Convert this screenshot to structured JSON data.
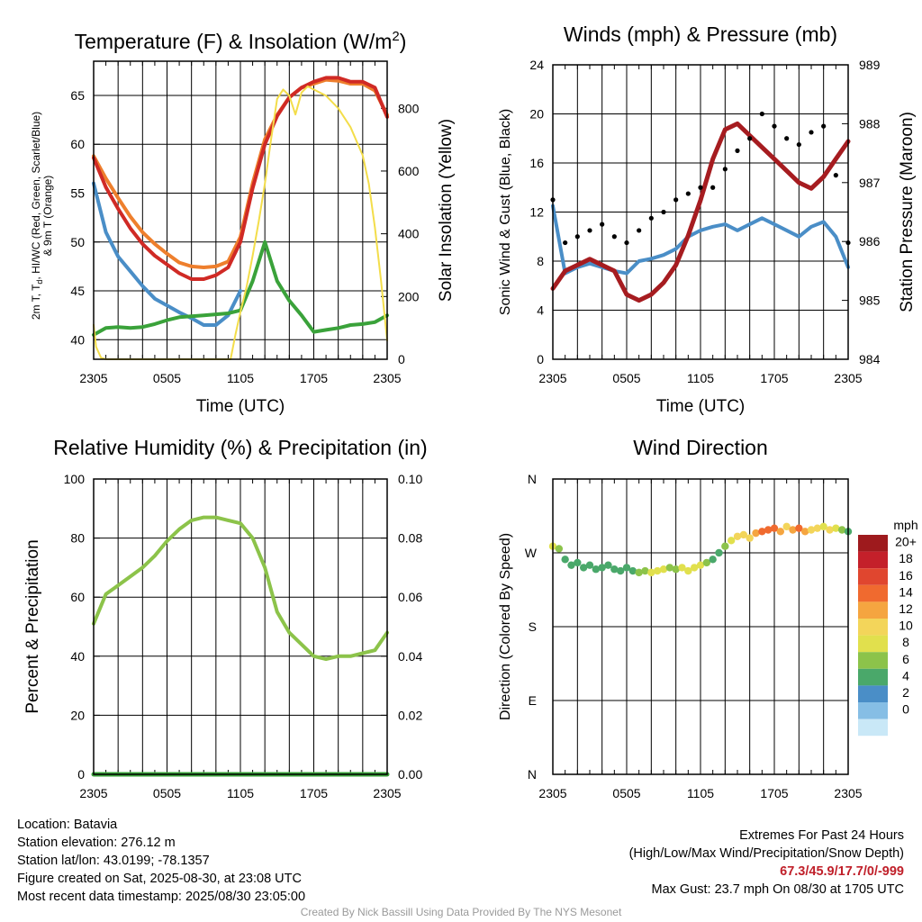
{
  "chart_data": [
    {
      "type": "line",
      "title": "Temperature (F) & Insolation (W/m²)",
      "xlabel": "Time (UTC)",
      "ylabel_lines": [
        "2m T, T",
        "d",
        ", HI/WC (Red, Green, Scarlet/Blue)",
        "& 9m T (Orange)"
      ],
      "ylabel_right": "Solar Insolation (Yellow)",
      "x_ticks": [
        "2305",
        "0505",
        "1105",
        "1705",
        "2305"
      ],
      "x_domain_hours": [
        0,
        24
      ],
      "ylim": [
        38,
        68.5
      ],
      "y_ticks": [
        40,
        45,
        50,
        55,
        60,
        65
      ],
      "ylim_right": [
        0,
        950
      ],
      "y_ticks_right": [
        0,
        200,
        400,
        600,
        800
      ],
      "grid": true,
      "series": [
        {
          "color": "#ee7f2d",
          "axis": "left",
          "width": 4,
          "x": [
            0,
            1,
            2,
            3,
            4,
            5,
            6,
            7,
            8,
            9,
            10,
            11,
            12,
            13,
            14,
            15,
            16,
            17,
            18,
            19,
            20,
            21,
            22,
            23,
            24
          ],
          "values": [
            58.8,
            56.5,
            54.5,
            52.6,
            51.0,
            49.8,
            48.8,
            47.9,
            47.5,
            47.4,
            47.5,
            48.0,
            50.5,
            56.0,
            60.5,
            63.0,
            64.8,
            65.8,
            66.2,
            66.6,
            66.5,
            66.2,
            66.2,
            65.5,
            63.0
          ]
        },
        {
          "color": "#d02a25",
          "axis": "left",
          "width": 4,
          "x": [
            0,
            1,
            2,
            3,
            4,
            5,
            6,
            7,
            8,
            9,
            10,
            11,
            12,
            13,
            14,
            15,
            16,
            17,
            18,
            19,
            20,
            21,
            22,
            23,
            24
          ],
          "values": [
            58.6,
            55.6,
            53.4,
            51.4,
            49.8,
            48.6,
            47.7,
            46.8,
            46.2,
            46.2,
            46.6,
            47.4,
            50.0,
            55.5,
            60.0,
            62.9,
            64.8,
            65.8,
            66.4,
            66.8,
            66.8,
            66.4,
            66.4,
            65.8,
            62.8
          ]
        },
        {
          "color": "#4a8ec7",
          "axis": "left",
          "width": 4,
          "x": [
            0,
            1,
            2,
            3,
            4,
            5,
            6,
            7,
            8,
            9,
            10,
            11,
            12
          ],
          "values": [
            56.0,
            51.0,
            48.5,
            47.0,
            45.5,
            44.2,
            43.5,
            42.8,
            42.2,
            41.5,
            41.5,
            42.5,
            45.0
          ]
        },
        {
          "color": "#3aa23a",
          "axis": "left",
          "width": 4,
          "x": [
            0,
            1,
            2,
            3,
            4,
            5,
            6,
            7,
            8,
            9,
            10,
            11,
            12,
            13,
            14,
            15,
            16,
            17,
            18,
            19,
            20,
            21,
            22,
            23,
            24
          ],
          "values": [
            40.5,
            41.2,
            41.3,
            41.2,
            41.3,
            41.6,
            42.0,
            42.3,
            42.4,
            42.5,
            42.6,
            42.7,
            43.0,
            46.0,
            50.0,
            46.0,
            44.0,
            42.5,
            40.8,
            41.0,
            41.2,
            41.5,
            41.6,
            41.8,
            42.5
          ]
        },
        {
          "color": "#f3dd4a",
          "axis": "right",
          "width": 2,
          "x": [
            0,
            0.2,
            0.6,
            1,
            4,
            8,
            11.2,
            11.6,
            12,
            12.5,
            13,
            13.5,
            14,
            14.5,
            15,
            15.5,
            16,
            16.5,
            17,
            17.5,
            18,
            19,
            20,
            21,
            22,
            22.5,
            23,
            23.5,
            24
          ],
          "values": [
            110,
            40,
            5,
            0,
            0,
            0,
            0,
            80,
            150,
            230,
            330,
            440,
            560,
            700,
            830,
            860,
            840,
            780,
            850,
            870,
            860,
            840,
            800,
            740,
            650,
            560,
            420,
            250,
            60
          ]
        }
      ]
    },
    {
      "type": "line",
      "title": "Winds (mph) & Pressure (mb)",
      "xlabel": "Time (UTC)",
      "ylabel": "Sonic Wind & Gust (Blue, Black)",
      "ylabel_right": "Station Pressure (Maroon)",
      "x_ticks": [
        "2305",
        "0505",
        "1105",
        "1705",
        "2305"
      ],
      "x_domain_hours": [
        0,
        24
      ],
      "ylim": [
        0,
        24
      ],
      "y_ticks": [
        0,
        4,
        8,
        12,
        16,
        20,
        24
      ],
      "ylim_right": [
        984,
        989
      ],
      "y_ticks_right": [
        984,
        985,
        986,
        987,
        988,
        989
      ],
      "grid": true,
      "series": [
        {
          "color": "#4a8ec7",
          "axis": "left",
          "width": 4,
          "x": [
            0,
            1,
            2,
            3,
            4,
            5,
            6,
            7,
            8,
            9,
            10,
            11,
            12,
            13,
            14,
            15,
            16,
            17,
            18,
            19,
            20,
            21,
            22,
            23,
            24
          ],
          "values": [
            12.5,
            7.0,
            7.5,
            7.8,
            7.5,
            7.2,
            7.0,
            8.0,
            8.2,
            8.5,
            9.0,
            10.0,
            10.5,
            10.8,
            11.0,
            10.5,
            11.0,
            11.5,
            11.0,
            10.5,
            10.0,
            10.8,
            11.2,
            10.0,
            7.5
          ]
        },
        {
          "color": "#a61c20",
          "axis": "right",
          "width": 5,
          "x": [
            0,
            1,
            2,
            3,
            4,
            5,
            6,
            7,
            8,
            9,
            10,
            11,
            12,
            13,
            14,
            15,
            16,
            17,
            18,
            19,
            20,
            21,
            22,
            23,
            24
          ],
          "values": [
            985.2,
            985.5,
            985.6,
            985.7,
            985.6,
            985.5,
            985.1,
            985.0,
            985.1,
            985.3,
            985.6,
            986.1,
            986.7,
            987.4,
            987.9,
            988.0,
            987.8,
            987.6,
            987.4,
            987.2,
            987.0,
            986.9,
            987.1,
            987.4,
            987.7
          ]
        },
        {
          "color": "#000000",
          "axis": "left",
          "mode": "markers",
          "x": [
            0,
            1,
            2,
            3,
            4,
            5,
            6,
            7,
            8,
            9,
            10,
            11,
            12,
            13,
            14,
            15,
            16,
            17,
            18,
            19,
            20,
            21,
            22,
            23,
            24
          ],
          "values": [
            13.0,
            9.5,
            10.0,
            10.5,
            11.0,
            10.0,
            9.5,
            10.5,
            11.5,
            12.0,
            13.0,
            13.5,
            14.0,
            14.0,
            15.5,
            17.0,
            18.0,
            20.0,
            19.0,
            18.0,
            17.5,
            18.5,
            19.0,
            15.0,
            9.5
          ]
        }
      ]
    },
    {
      "type": "line",
      "title": "Relative Humidity (%) & Precipitation (in)",
      "ylabel": "Percent & Precipitation",
      "x_ticks": [
        "2305",
        "0505",
        "1105",
        "1705",
        "2305"
      ],
      "x_domain_hours": [
        0,
        24
      ],
      "ylim": [
        0,
        100
      ],
      "y_ticks": [
        0,
        20,
        40,
        60,
        80,
        100
      ],
      "ylim_right": [
        0,
        0.1
      ],
      "y_ticks_right": [
        "0.00",
        "0.02",
        "0.04",
        "0.06",
        "0.08",
        "0.10"
      ],
      "grid": true,
      "series": [
        {
          "color": "#8cc34a",
          "axis": "left",
          "width": 4,
          "x": [
            0,
            1,
            2,
            3,
            4,
            5,
            6,
            7,
            8,
            9,
            10,
            11,
            12,
            13,
            14,
            15,
            16,
            17,
            18,
            19,
            20,
            21,
            22,
            23,
            24
          ],
          "values": [
            51,
            61,
            64,
            67,
            70,
            74,
            79,
            83,
            86,
            87,
            87,
            86,
            85,
            80,
            70,
            55,
            48,
            44,
            40,
            39,
            40,
            40,
            41,
            42,
            48
          ]
        },
        {
          "color": "#3aa23a",
          "axis": "right",
          "width": 5,
          "x": [
            0,
            24
          ],
          "values": [
            0,
            0
          ]
        }
      ]
    },
    {
      "type": "scatter",
      "title": "Wind Direction",
      "ylabel": "Direction (Colored By Speed)",
      "x_ticks": [
        "2305",
        "0505",
        "1105",
        "1705",
        "2305"
      ],
      "x_domain_hours": [
        0,
        24
      ],
      "y_ticks": [
        "N",
        "E",
        "S",
        "W",
        "N"
      ],
      "ylim_degrees": [
        0,
        360
      ],
      "grid": true,
      "points": {
        "x": [
          0,
          0.5,
          1,
          1.5,
          2,
          2.5,
          3,
          3.5,
          4,
          4.5,
          5,
          5.5,
          6,
          6.5,
          7,
          7.5,
          8,
          8.5,
          9,
          9.5,
          10,
          10.5,
          11,
          11.5,
          12,
          12.5,
          13,
          13.5,
          14,
          14.5,
          15,
          15.5,
          16,
          16.5,
          17,
          17.5,
          18,
          18.5,
          19,
          19.5,
          20,
          20.5,
          21,
          21.5,
          22,
          22.5,
          23,
          23.5,
          24
        ],
        "degrees": [
          278,
          275,
          262,
          255,
          258,
          252,
          255,
          250,
          252,
          255,
          250,
          248,
          252,
          248,
          246,
          248,
          246,
          248,
          250,
          252,
          250,
          252,
          248,
          252,
          255,
          258,
          262,
          270,
          278,
          285,
          290,
          292,
          288,
          294,
          296,
          298,
          300,
          296,
          302,
          298,
          300,
          296,
          298,
          300,
          302,
          298,
          300,
          298,
          296
        ],
        "speed": [
          10,
          8,
          6,
          6,
          7,
          6,
          6,
          6,
          7,
          6,
          6,
          7,
          7,
          7,
          9,
          9,
          10,
          10,
          10,
          9,
          9,
          10,
          10,
          10,
          10,
          8,
          7,
          7,
          9,
          11,
          12,
          12,
          13,
          15,
          16,
          17,
          16,
          14,
          13,
          15,
          16,
          14,
          12,
          12,
          11,
          12,
          10,
          8,
          7
        ]
      },
      "colorbar": {
        "title": "mph",
        "labels": [
          "20+",
          "18",
          "16",
          "14",
          "12",
          "10",
          "8",
          "6",
          "4",
          "2",
          "0"
        ],
        "colors": [
          "#9e1a1d",
          "#c4202a",
          "#e0462f",
          "#f06a2f",
          "#f5a540",
          "#f3d55a",
          "#e1e04d",
          "#8cc34a",
          "#4aa86a",
          "#4a8ec7",
          "#86bee5",
          "#c9e8f7"
        ]
      }
    }
  ],
  "info": {
    "location": "Location: Batavia",
    "elevation": "Station elevation: 276.12 m",
    "latlon": "Station lat/lon: 43.0199; -78.1357",
    "created": "Figure created on Sat, 2025-08-30, at 23:08 UTC",
    "recent": "Most recent data timestamp: 2025/08/30 23:05:00"
  },
  "extremes": {
    "title": "Extremes For Past 24 Hours",
    "subtitle": "(High/Low/Max Wind/Precipitation/Snow Depth)",
    "values": "67.3/45.9/17.7/0/-999",
    "max_gust": "Max Gust: 23.7 mph On 08/30 at 1705 UTC"
  },
  "credit": "Created By Nick Bassill Using Data Provided By The NYS Mesonet"
}
